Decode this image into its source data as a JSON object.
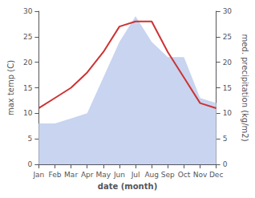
{
  "chart_data": {
    "type": "line",
    "categories": [
      "Jan",
      "Feb",
      "Mar",
      "Apr",
      "May",
      "Jun",
      "Jul",
      "Aug",
      "Sep",
      "Oct",
      "Nov",
      "Dec"
    ],
    "series": [
      {
        "type": "area",
        "color": "#c8d4f0",
        "axis": "y2",
        "values": [
          8,
          8,
          9,
          10,
          17,
          24,
          29,
          24,
          21,
          21,
          13,
          12
        ]
      },
      {
        "type": "line",
        "color": "#cc3333",
        "values": [
          11,
          13,
          15,
          18,
          22,
          27,
          28,
          28,
          22,
          17,
          12,
          11
        ]
      }
    ],
    "xlabel": "date (month)",
    "ylabel": "max temp (C)",
    "y2label": "med. precipitation (kg/m2)",
    "ylim": [
      0,
      30
    ],
    "yticks": [
      0,
      5,
      10,
      15,
      20,
      25,
      30
    ],
    "y2lim": [
      0,
      30
    ],
    "y2ticks": [
      0,
      5,
      10,
      15,
      20,
      25,
      30
    ],
    "grid": false
  }
}
